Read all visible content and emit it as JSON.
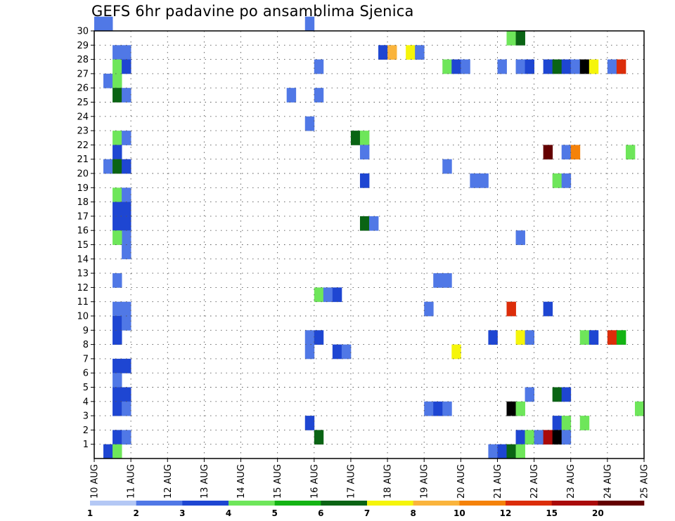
{
  "chart_data": {
    "type": "heatmap",
    "title": "GEFS 6hr padavine po ansamblima Sjenica",
    "xlabel": "",
    "ylabel": "",
    "x_ticks": [
      "10 AUG",
      "11 AUG",
      "12 AUG",
      "13 AUG",
      "14 AUG",
      "15 AUG",
      "16 AUG",
      "17 AUG",
      "18 AUG",
      "19 AUG",
      "20 AUG",
      "21 AUG",
      "22 AUG",
      "23 AUG",
      "24 AUG",
      "25 AUG"
    ],
    "y_ticks": [
      1,
      2,
      3,
      4,
      5,
      6,
      7,
      8,
      9,
      10,
      11,
      12,
      13,
      14,
      15,
      16,
      17,
      18,
      19,
      20,
      21,
      22,
      23,
      24,
      25,
      26,
      27,
      28,
      29,
      30
    ],
    "xlim": [
      0,
      60
    ],
    "ylim": [
      0,
      30
    ],
    "grid": true,
    "colorbar": {
      "labels": [
        "1",
        "2",
        "3",
        "4",
        "5",
        "6",
        "7",
        "8",
        "10",
        "12",
        "15",
        "20"
      ],
      "colors": [
        "#b4c8f5",
        "#5078e6",
        "#1e46d2",
        "#6ee65a",
        "#14b414",
        "#0a6414",
        "#f5f50a",
        "#fab43c",
        "#f5820a",
        "#dc2d0a",
        "#aa0a0a",
        "#640000"
      ]
    },
    "cells": [
      [
        0,
        30,
        1
      ],
      [
        1,
        30,
        1
      ],
      [
        2,
        28,
        1
      ],
      [
        3,
        28,
        1
      ],
      [
        1,
        26,
        1
      ],
      [
        2,
        27,
        3
      ],
      [
        3,
        27,
        2
      ],
      [
        2,
        26,
        3
      ],
      [
        2,
        25,
        5
      ],
      [
        3,
        25,
        1
      ],
      [
        2,
        22,
        3
      ],
      [
        3,
        22,
        1
      ],
      [
        2,
        21,
        2
      ],
      [
        1,
        20,
        1
      ],
      [
        2,
        20,
        5
      ],
      [
        3,
        20,
        2
      ],
      [
        2,
        18,
        3
      ],
      [
        3,
        18,
        1
      ],
      [
        2,
        17,
        2
      ],
      [
        3,
        17,
        2
      ],
      [
        2,
        16,
        2
      ],
      [
        3,
        16,
        2
      ],
      [
        3,
        15,
        1
      ],
      [
        2,
        15,
        3
      ],
      [
        3,
        14,
        1
      ],
      [
        2,
        12,
        1
      ],
      [
        2,
        10,
        1
      ],
      [
        3,
        10,
        1
      ],
      [
        2,
        9,
        2
      ],
      [
        3,
        9,
        1
      ],
      [
        2,
        8,
        2
      ],
      [
        2,
        6,
        2
      ],
      [
        3,
        6,
        2
      ],
      [
        2,
        5,
        1
      ],
      [
        2,
        4,
        2
      ],
      [
        3,
        4,
        2
      ],
      [
        2,
        3,
        2
      ],
      [
        3,
        3,
        1
      ],
      [
        2,
        1,
        2
      ],
      [
        3,
        1,
        1
      ],
      [
        1,
        0,
        2
      ],
      [
        2,
        0,
        3
      ],
      [
        23,
        30,
        1
      ],
      [
        24,
        27,
        1
      ],
      [
        21,
        25,
        1
      ],
      [
        24,
        25,
        1
      ],
      [
        23,
        23,
        1
      ],
      [
        28,
        22,
        5
      ],
      [
        29,
        22,
        3
      ],
      [
        29,
        21,
        1
      ],
      [
        29,
        19,
        2
      ],
      [
        29,
        16,
        5
      ],
      [
        30,
        16,
        1
      ],
      [
        24,
        11,
        3
      ],
      [
        25,
        11,
        1
      ],
      [
        26,
        11,
        2
      ],
      [
        23,
        8,
        1
      ],
      [
        24,
        8,
        2
      ],
      [
        23,
        7,
        1
      ],
      [
        26,
        7,
        2
      ],
      [
        27,
        7,
        1
      ],
      [
        23,
        2,
        2
      ],
      [
        24,
        1,
        5
      ],
      [
        31,
        28,
        2
      ],
      [
        32,
        28,
        7
      ],
      [
        34,
        28,
        6
      ],
      [
        35,
        28,
        1
      ],
      [
        38,
        27,
        3
      ],
      [
        39,
        27,
        2
      ],
      [
        40,
        27,
        1
      ],
      [
        38,
        20,
        1
      ],
      [
        41,
        19,
        1
      ],
      [
        42,
        19,
        1
      ],
      [
        37,
        12,
        1
      ],
      [
        38,
        12,
        1
      ],
      [
        36,
        10,
        1
      ],
      [
        39,
        7,
        6
      ],
      [
        36,
        3,
        1
      ],
      [
        37,
        3,
        2
      ],
      [
        38,
        3,
        1
      ],
      [
        45,
        29,
        3
      ],
      [
        46,
        29,
        5
      ],
      [
        44,
        27,
        1
      ],
      [
        46,
        27,
        1
      ],
      [
        47,
        27,
        2
      ],
      [
        49,
        27,
        2
      ],
      [
        50,
        27,
        5
      ],
      [
        51,
        27,
        2
      ],
      [
        52,
        27,
        1
      ],
      [
        53,
        27,
        13
      ],
      [
        54,
        27,
        6
      ],
      [
        56,
        27,
        1
      ],
      [
        57,
        27,
        9
      ],
      [
        49,
        21,
        11
      ],
      [
        51,
        21,
        1
      ],
      [
        52,
        21,
        8
      ],
      [
        58,
        21,
        3
      ],
      [
        50,
        19,
        3
      ],
      [
        51,
        19,
        1
      ],
      [
        46,
        15,
        1
      ],
      [
        45,
        10,
        9
      ],
      [
        49,
        10,
        2
      ],
      [
        43,
        8,
        2
      ],
      [
        46,
        8,
        6
      ],
      [
        47,
        8,
        1
      ],
      [
        53,
        8,
        3
      ],
      [
        54,
        8,
        2
      ],
      [
        56,
        8,
        9
      ],
      [
        57,
        8,
        4
      ],
      [
        47,
        4,
        1
      ],
      [
        50,
        4,
        5
      ],
      [
        51,
        4,
        2
      ],
      [
        45,
        3,
        13
      ],
      [
        46,
        3,
        3
      ],
      [
        59,
        3,
        3
      ],
      [
        50,
        2,
        2
      ],
      [
        51,
        2,
        3
      ],
      [
        53,
        2,
        3
      ],
      [
        46,
        1,
        2
      ],
      [
        47,
        1,
        3
      ],
      [
        48,
        1,
        1
      ],
      [
        49,
        1,
        10
      ],
      [
        50,
        1,
        12
      ],
      [
        51,
        1,
        1
      ],
      [
        43,
        0,
        1
      ],
      [
        44,
        0,
        2
      ],
      [
        45,
        0,
        5
      ],
      [
        46,
        0,
        3
      ]
    ]
  }
}
